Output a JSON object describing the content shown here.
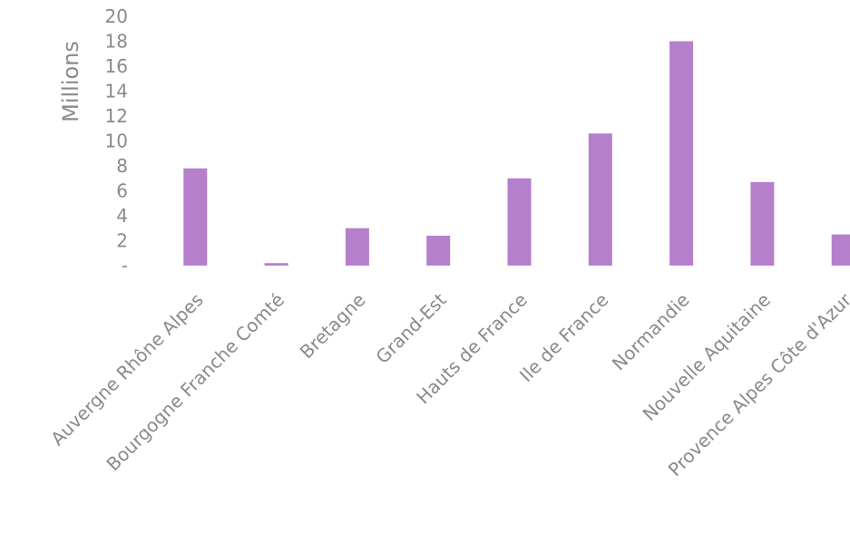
{
  "chart_data": {
    "type": "bar",
    "ylabel": "Millions",
    "xlabel": "",
    "ylim": [
      0,
      20
    ],
    "y_ticks": [
      "-",
      "2",
      "4",
      "6",
      "8",
      "10",
      "12",
      "14",
      "16",
      "18",
      "20"
    ],
    "grid": false,
    "categories": [
      "Auvergne Rhône Alpes",
      "Bourgogne Franche Comté",
      "Bretagne",
      "Grand-Est",
      "Hauts de France",
      "Ile de France",
      "Normandie",
      "Nouvelle Aquitaine",
      "Provence Alpes Côte d'Azur"
    ],
    "values": [
      7.8,
      0.2,
      3.0,
      2.4,
      7.0,
      10.6,
      18.0,
      6.7,
      2.5
    ],
    "bar_color": "#b57fcb"
  }
}
